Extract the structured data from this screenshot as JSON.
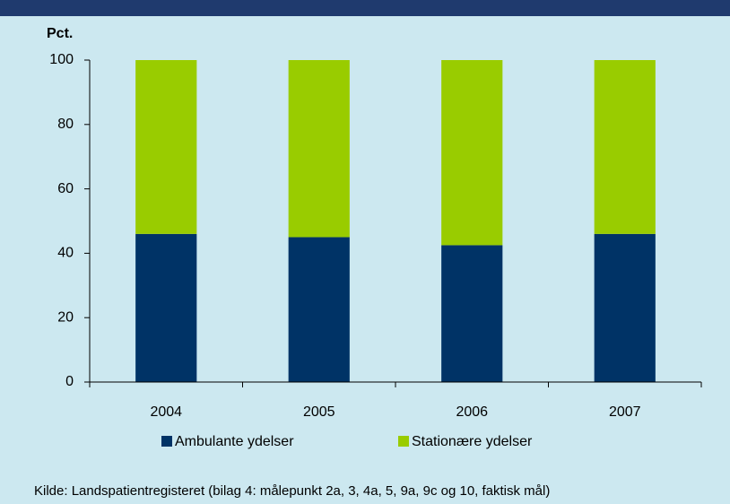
{
  "chart_data": {
    "type": "stacked_bar",
    "y_label": "Pct.",
    "categories": [
      "2004",
      "2005",
      "2006",
      "2007"
    ],
    "series": [
      {
        "name": "Ambulante ydelser",
        "color": "#003366",
        "values": [
          46,
          45,
          42.5,
          46
        ]
      },
      {
        "name": "Stationære ydelser",
        "color": "#99cc00",
        "values": [
          54,
          55,
          57.5,
          54
        ]
      }
    ],
    "ylim": [
      0,
      100
    ],
    "yticks": [
      0,
      20,
      40,
      60,
      80,
      100
    ],
    "source": "Kilde: Landspatientregisteret (bilag 4: målepunkt 2a, 3, 4a, 5, 9a, 9c og 10, faktisk mål)"
  }
}
